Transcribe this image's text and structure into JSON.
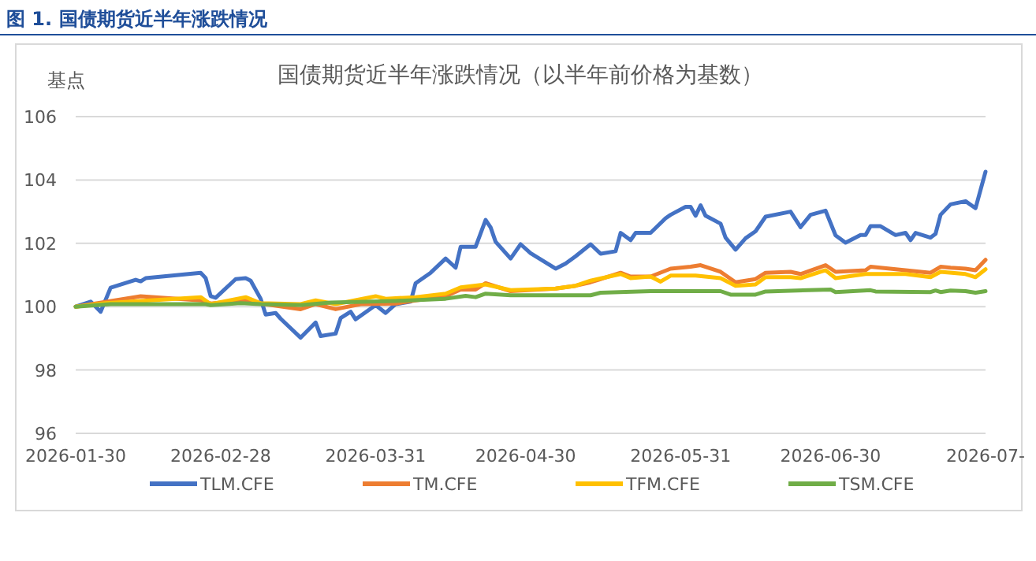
{
  "chart_data": {
    "type": "line",
    "title": "国债期货近半年涨跌情况（以半年前价格为基数）",
    "ylabel": "基点",
    "annotations": [
      "图 1. 国债期货近半年涨跌情况"
    ],
    "xlim": [
      "2026-01-30",
      "2026-07-31"
    ],
    "xticks": [
      "2026-01-30",
      "2026-02-28",
      "2026-03-31",
      "2026-04-30",
      "2026-05-31",
      "2026-06-30",
      {
        "value": "2026-07-31",
        "label": "2026-07-"
      }
    ],
    "ylim": [
      96,
      106
    ],
    "yticks": [
      96,
      98,
      100,
      102,
      104,
      106
    ],
    "grid": "y",
    "legend": "bottom",
    "marker": "none",
    "line_style": "solid",
    "series": [
      {
        "name": "TLM.CFE",
        "color": "#4472c4",
        "x": [
          "2026-01-30",
          "2026-02-02",
          "2026-02-04",
          "2026-02-06",
          "2026-02-11",
          "2026-02-12",
          "2026-02-13",
          "2026-02-24",
          "2026-02-25",
          "2026-02-26",
          "2026-02-27",
          "2026-03-03",
          "2026-03-05",
          "2026-03-06",
          "2026-03-08",
          "2026-03-09",
          "2026-03-11",
          "2026-03-12",
          "2026-03-16",
          "2026-03-19",
          "2026-03-20",
          "2026-03-23",
          "2026-03-24",
          "2026-03-26",
          "2026-03-27",
          "2026-03-31",
          "2026-04-02",
          "2026-04-04",
          "2026-04-07",
          "2026-04-08",
          "2026-04-11",
          "2026-04-14",
          "2026-04-16",
          "2026-04-17",
          "2026-04-20",
          "2026-04-22",
          "2026-04-23",
          "2026-04-24",
          "2026-04-27",
          "2026-04-29",
          "2026-05-01",
          "2026-05-06",
          "2026-05-08",
          "2026-05-10",
          "2026-05-13",
          "2026-05-15",
          "2026-05-18",
          "2026-05-19",
          "2026-05-21",
          "2026-05-22",
          "2026-05-25",
          "2026-05-28",
          "2026-05-29",
          "2026-06-01",
          "2026-06-02",
          "2026-06-03",
          "2026-06-04",
          "2026-06-05",
          "2026-06-08",
          "2026-06-09",
          "2026-06-11",
          "2026-06-13",
          "2026-06-15",
          "2026-06-17",
          "2026-06-22",
          "2026-06-24",
          "2026-06-26",
          "2026-06-29",
          "2026-07-01",
          "2026-07-03",
          "2026-07-06",
          "2026-07-07",
          "2026-07-08",
          "2026-07-10",
          "2026-07-13",
          "2026-07-15",
          "2026-07-16",
          "2026-07-17",
          "2026-07-20",
          "2026-07-21",
          "2026-07-22",
          "2026-07-24",
          "2026-07-27",
          "2026-07-29",
          "2026-07-31"
        ],
        "values": [
          100,
          100.16,
          99.84,
          100.6,
          100.85,
          100.8,
          100.9,
          101.07,
          100.9,
          100.33,
          100.28,
          100.87,
          100.9,
          100.82,
          100.25,
          99.75,
          99.8,
          99.62,
          99.02,
          99.5,
          99.07,
          99.15,
          99.64,
          99.84,
          99.6,
          100.05,
          99.8,
          100.08,
          100.16,
          100.74,
          101.07,
          101.52,
          101.23,
          101.89,
          101.89,
          102.74,
          102.5,
          102.05,
          101.52,
          101.97,
          101.69,
          101.2,
          101.36,
          101.59,
          101.97,
          101.67,
          101.75,
          102.33,
          102.1,
          102.33,
          102.33,
          102.79,
          102.9,
          103.15,
          103.15,
          102.87,
          103.2,
          102.87,
          102.62,
          102.18,
          101.8,
          102.16,
          102.38,
          102.84,
          103.0,
          102.51,
          102.9,
          103.03,
          102.25,
          102.02,
          102.26,
          102.26,
          102.54,
          102.54,
          102.26,
          102.33,
          102.1,
          102.33,
          102.18,
          102.3,
          102.9,
          103.23,
          103.33,
          103.11,
          104.26
        ]
      },
      {
        "name": "TM.CFE",
        "color": "#ed7d31",
        "x": [
          "2026-01-30",
          "2026-02-12",
          "2026-02-24",
          "2026-02-26",
          "2026-03-05",
          "2026-03-08",
          "2026-03-16",
          "2026-03-19",
          "2026-03-23",
          "2026-03-28",
          "2026-04-04",
          "2026-04-08",
          "2026-04-14",
          "2026-04-17",
          "2026-04-20",
          "2026-04-22",
          "2026-04-27",
          "2026-05-06",
          "2026-05-10",
          "2026-05-13",
          "2026-05-19",
          "2026-05-21",
          "2026-05-25",
          "2026-05-29",
          "2026-06-02",
          "2026-06-04",
          "2026-06-08",
          "2026-06-11",
          "2026-06-13",
          "2026-06-15",
          "2026-06-17",
          "2026-06-22",
          "2026-06-24",
          "2026-06-29",
          "2026-07-01",
          "2026-07-07",
          "2026-07-08",
          "2026-07-15",
          "2026-07-20",
          "2026-07-22",
          "2026-07-24",
          "2026-07-27",
          "2026-07-29",
          "2026-07-31"
        ],
        "values": [
          100,
          100.33,
          100.2,
          100.1,
          100.2,
          100.1,
          99.92,
          100.08,
          99.92,
          100.08,
          100.1,
          100.2,
          100.33,
          100.54,
          100.54,
          100.74,
          100.49,
          100.57,
          100.66,
          100.77,
          101.07,
          100.95,
          100.95,
          101.2,
          101.26,
          101.31,
          101.1,
          100.77,
          100.82,
          100.87,
          101.07,
          101.1,
          101.03,
          101.31,
          101.1,
          101.15,
          101.26,
          101.15,
          101.07,
          101.26,
          101.23,
          101.2,
          101.15,
          101.48
        ]
      },
      {
        "name": "TFM.CFE",
        "color": "#ffc000",
        "x": [
          "2026-01-30",
          "2026-02-05",
          "2026-02-24",
          "2026-02-26",
          "2026-03-05",
          "2026-03-08",
          "2026-03-16",
          "2026-03-19",
          "2026-03-23",
          "2026-03-31",
          "2026-04-02",
          "2026-04-08",
          "2026-04-14",
          "2026-04-17",
          "2026-04-22",
          "2026-04-27",
          "2026-05-06",
          "2026-05-10",
          "2026-05-13",
          "2026-05-19",
          "2026-05-21",
          "2026-05-25",
          "2026-05-27",
          "2026-05-29",
          "2026-06-03",
          "2026-06-08",
          "2026-06-11",
          "2026-06-15",
          "2026-06-17",
          "2026-06-22",
          "2026-06-24",
          "2026-06-29",
          "2026-07-01",
          "2026-07-07",
          "2026-07-15",
          "2026-07-20",
          "2026-07-22",
          "2026-07-27",
          "2026-07-29",
          "2026-07-31"
        ],
        "values": [
          100,
          100.11,
          100.3,
          100.08,
          100.3,
          100.11,
          100.08,
          100.2,
          100.08,
          100.33,
          100.25,
          100.3,
          100.41,
          100.61,
          100.7,
          100.52,
          100.57,
          100.66,
          100.82,
          101.03,
          100.9,
          100.95,
          100.79,
          100.98,
          100.98,
          100.9,
          100.66,
          100.7,
          100.93,
          100.93,
          100.9,
          101.15,
          100.9,
          101.03,
          101.03,
          100.93,
          101.1,
          101.03,
          100.93,
          101.18
        ]
      },
      {
        "name": "TSM.CFE",
        "color": "#70ad47",
        "x": [
          "2026-01-30",
          "2026-02-06",
          "2026-02-12",
          "2026-02-25",
          "2026-02-26",
          "2026-03-04",
          "2026-03-08",
          "2026-03-16",
          "2026-03-22",
          "2026-04-04",
          "2026-04-14",
          "2026-04-18",
          "2026-04-20",
          "2026-04-22",
          "2026-04-27",
          "2026-05-13",
          "2026-05-15",
          "2026-05-25",
          "2026-06-08",
          "2026-06-10",
          "2026-06-15",
          "2026-06-17",
          "2026-06-30",
          "2026-07-01",
          "2026-07-08",
          "2026-07-09",
          "2026-07-20",
          "2026-07-21",
          "2026-07-22",
          "2026-07-24",
          "2026-07-27",
          "2026-07-29",
          "2026-07-31"
        ],
        "values": [
          100,
          100.08,
          100.08,
          100.08,
          100.05,
          100.11,
          100.08,
          100.05,
          100.13,
          100.18,
          100.25,
          100.34,
          100.3,
          100.41,
          100.36,
          100.36,
          100.44,
          100.49,
          100.49,
          100.38,
          100.38,
          100.48,
          100.54,
          100.46,
          100.52,
          100.48,
          100.46,
          100.51,
          100.46,
          100.51,
          100.49,
          100.44,
          100.49
        ]
      }
    ]
  }
}
